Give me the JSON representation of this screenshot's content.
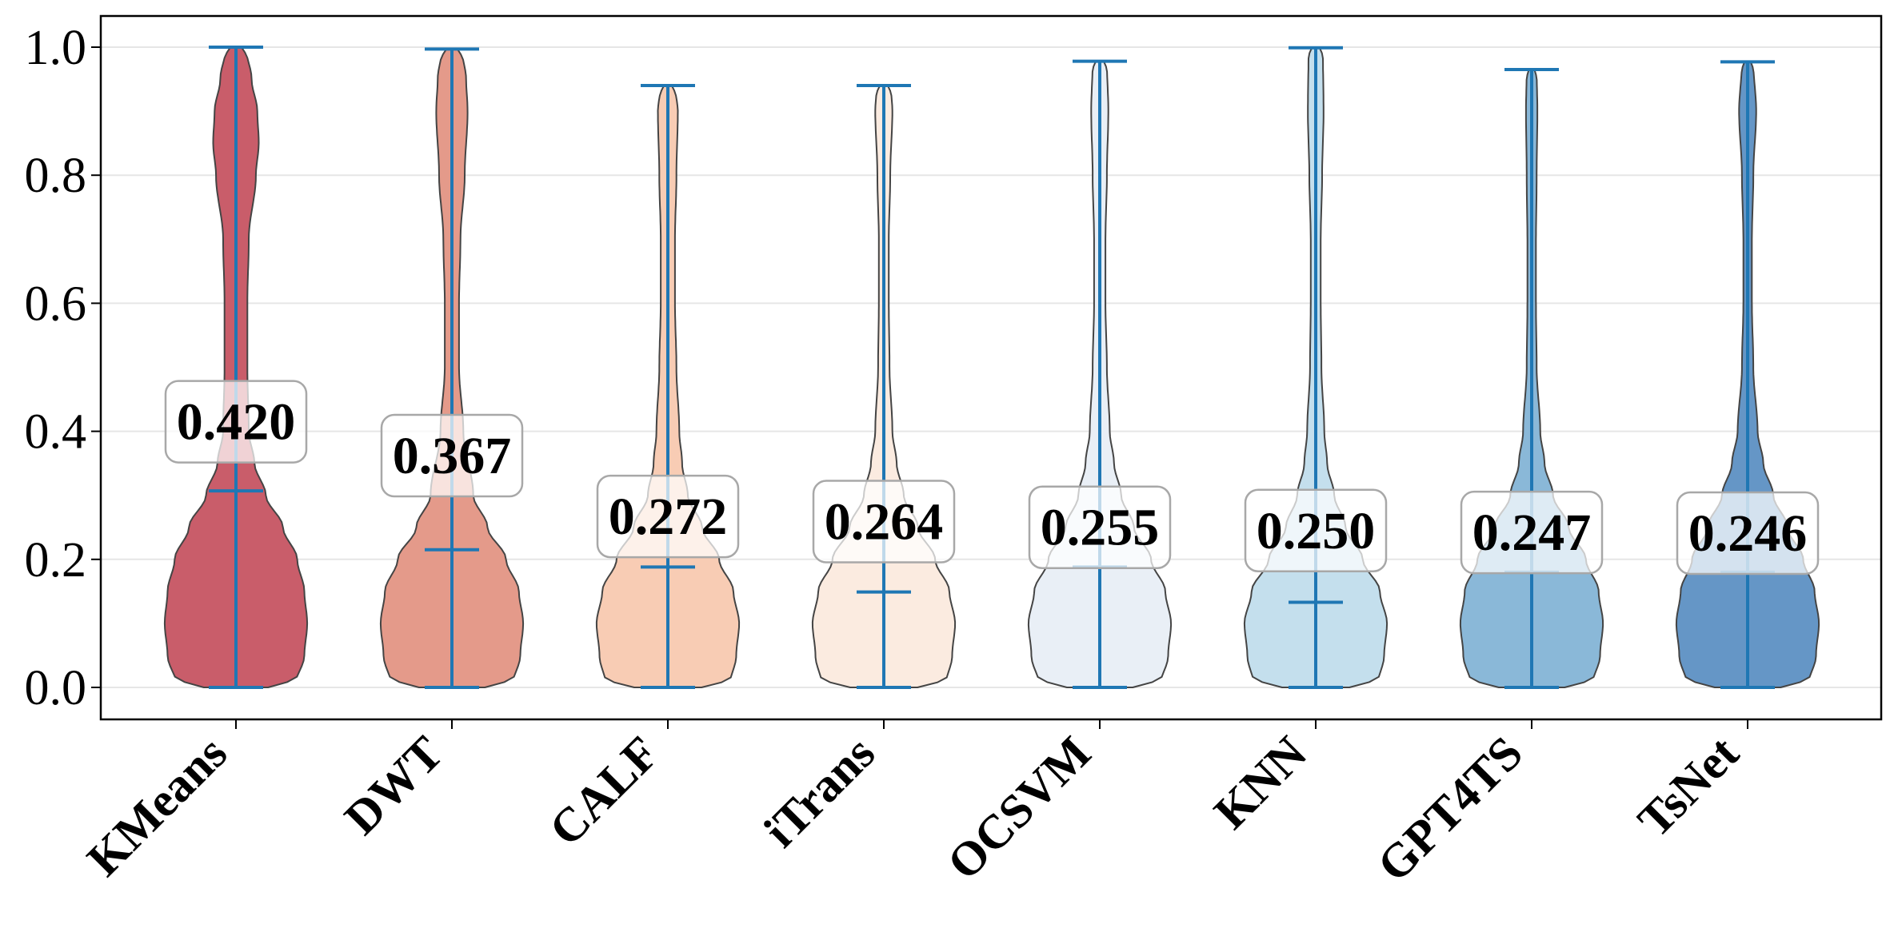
{
  "chart_data": {
    "type": "violin",
    "title": "",
    "xlabel": "",
    "ylabel": "",
    "ylim": [
      -0.05,
      1.05
    ],
    "yticks": [
      "0.0",
      "0.2",
      "0.4",
      "0.6",
      "0.8",
      "1.0"
    ],
    "grid": "horizontal",
    "categories": [
      "KMeans",
      "DWT",
      "CALF",
      "iTrans",
      "OCSVM",
      "KNN",
      "GPT4TS",
      "TsNet"
    ],
    "series": [
      {
        "name": "KMeans",
        "color": "#c95d6a",
        "min": 0.0,
        "max": 1.0,
        "median": 0.307,
        "mean_label": "0.420",
        "profile": [
          [
            0.0,
            0.41
          ],
          [
            0.05,
            0.48
          ],
          [
            0.1,
            0.5
          ],
          [
            0.15,
            0.48
          ],
          [
            0.2,
            0.43
          ],
          [
            0.25,
            0.33
          ],
          [
            0.3,
            0.21
          ],
          [
            0.35,
            0.13
          ],
          [
            0.4,
            0.09
          ],
          [
            0.5,
            0.08
          ],
          [
            0.6,
            0.08
          ],
          [
            0.7,
            0.09
          ],
          [
            0.8,
            0.14
          ],
          [
            0.85,
            0.16
          ],
          [
            0.9,
            0.15
          ],
          [
            0.95,
            0.11
          ],
          [
            1.0,
            0.07
          ]
        ]
      },
      {
        "name": "DWT",
        "color": "#e49a8a",
        "min": 0.0,
        "max": 0.997,
        "median": 0.215,
        "mean_label": "0.367",
        "profile": [
          [
            0.0,
            0.42
          ],
          [
            0.05,
            0.48
          ],
          [
            0.1,
            0.5
          ],
          [
            0.15,
            0.47
          ],
          [
            0.2,
            0.38
          ],
          [
            0.25,
            0.25
          ],
          [
            0.3,
            0.15
          ],
          [
            0.4,
            0.08
          ],
          [
            0.5,
            0.05
          ],
          [
            0.6,
            0.05
          ],
          [
            0.7,
            0.06
          ],
          [
            0.8,
            0.09
          ],
          [
            0.9,
            0.11
          ],
          [
            0.95,
            0.1
          ],
          [
            0.997,
            0.07
          ]
        ]
      },
      {
        "name": "CALF",
        "color": "#f8ccb4",
        "min": 0.0,
        "max": 0.94,
        "median": 0.188,
        "mean_label": "0.272",
        "profile": [
          [
            0.0,
            0.43
          ],
          [
            0.05,
            0.48
          ],
          [
            0.1,
            0.5
          ],
          [
            0.15,
            0.46
          ],
          [
            0.2,
            0.36
          ],
          [
            0.25,
            0.24
          ],
          [
            0.3,
            0.14
          ],
          [
            0.35,
            0.1
          ],
          [
            0.4,
            0.08
          ],
          [
            0.5,
            0.06
          ],
          [
            0.6,
            0.05
          ],
          [
            0.7,
            0.05
          ],
          [
            0.8,
            0.06
          ],
          [
            0.9,
            0.07
          ],
          [
            0.94,
            0.05
          ]
        ]
      },
      {
        "name": "iTrans",
        "color": "#fbebe0",
        "min": 0.0,
        "max": 0.94,
        "median": 0.149,
        "mean_label": "0.264",
        "profile": [
          [
            0.0,
            0.43
          ],
          [
            0.05,
            0.48
          ],
          [
            0.1,
            0.5
          ],
          [
            0.15,
            0.46
          ],
          [
            0.2,
            0.36
          ],
          [
            0.25,
            0.24
          ],
          [
            0.3,
            0.14
          ],
          [
            0.35,
            0.09
          ],
          [
            0.4,
            0.06
          ],
          [
            0.5,
            0.04
          ],
          [
            0.6,
            0.035
          ],
          [
            0.7,
            0.035
          ],
          [
            0.8,
            0.045
          ],
          [
            0.9,
            0.06
          ],
          [
            0.94,
            0.05
          ]
        ]
      },
      {
        "name": "OCSVM",
        "color": "#e9eff6",
        "min": 0.0,
        "max": 0.978,
        "median": 0.188,
        "mean_label": "0.255",
        "profile": [
          [
            0.0,
            0.42
          ],
          [
            0.05,
            0.48
          ],
          [
            0.1,
            0.5
          ],
          [
            0.15,
            0.46
          ],
          [
            0.2,
            0.36
          ],
          [
            0.25,
            0.24
          ],
          [
            0.3,
            0.15
          ],
          [
            0.35,
            0.1
          ],
          [
            0.4,
            0.07
          ],
          [
            0.5,
            0.05
          ],
          [
            0.6,
            0.04
          ],
          [
            0.7,
            0.04
          ],
          [
            0.8,
            0.05
          ],
          [
            0.9,
            0.06
          ],
          [
            0.978,
            0.05
          ]
        ]
      },
      {
        "name": "KNN",
        "color": "#c4dfed",
        "min": 0.0,
        "max": 0.999,
        "median": 0.133,
        "mean_label": "0.250",
        "profile": [
          [
            0.0,
            0.43
          ],
          [
            0.05,
            0.48
          ],
          [
            0.1,
            0.5
          ],
          [
            0.15,
            0.45
          ],
          [
            0.2,
            0.33
          ],
          [
            0.25,
            0.21
          ],
          [
            0.3,
            0.13
          ],
          [
            0.35,
            0.08
          ],
          [
            0.4,
            0.06
          ],
          [
            0.5,
            0.04
          ],
          [
            0.6,
            0.035
          ],
          [
            0.7,
            0.035
          ],
          [
            0.8,
            0.045
          ],
          [
            0.9,
            0.055
          ],
          [
            0.999,
            0.05
          ]
        ]
      },
      {
        "name": "GPT4TS",
        "color": "#8ab8d8",
        "min": 0.0,
        "max": 0.965,
        "median": 0.18,
        "mean_label": "0.247",
        "profile": [
          [
            0.0,
            0.42
          ],
          [
            0.05,
            0.48
          ],
          [
            0.1,
            0.5
          ],
          [
            0.15,
            0.47
          ],
          [
            0.2,
            0.38
          ],
          [
            0.25,
            0.26
          ],
          [
            0.3,
            0.15
          ],
          [
            0.35,
            0.09
          ],
          [
            0.4,
            0.06
          ],
          [
            0.5,
            0.035
          ],
          [
            0.6,
            0.03
          ],
          [
            0.7,
            0.03
          ],
          [
            0.8,
            0.035
          ],
          [
            0.9,
            0.04
          ],
          [
            0.965,
            0.035
          ]
        ]
      },
      {
        "name": "TsNet",
        "color": "#6596c6",
        "min": 0.0,
        "max": 0.977,
        "median": 0.18,
        "mean_label": "0.246",
        "profile": [
          [
            0.0,
            0.42
          ],
          [
            0.05,
            0.48
          ],
          [
            0.1,
            0.5
          ],
          [
            0.15,
            0.47
          ],
          [
            0.2,
            0.39
          ],
          [
            0.25,
            0.28
          ],
          [
            0.3,
            0.18
          ],
          [
            0.35,
            0.11
          ],
          [
            0.4,
            0.07
          ],
          [
            0.5,
            0.04
          ],
          [
            0.6,
            0.03
          ],
          [
            0.7,
            0.03
          ],
          [
            0.8,
            0.04
          ],
          [
            0.9,
            0.06
          ],
          [
            0.977,
            0.04
          ]
        ]
      }
    ]
  },
  "style": {
    "line_color": "#1f77b4",
    "outline_color": "#444444",
    "grid_color": "#e6e6e6"
  }
}
